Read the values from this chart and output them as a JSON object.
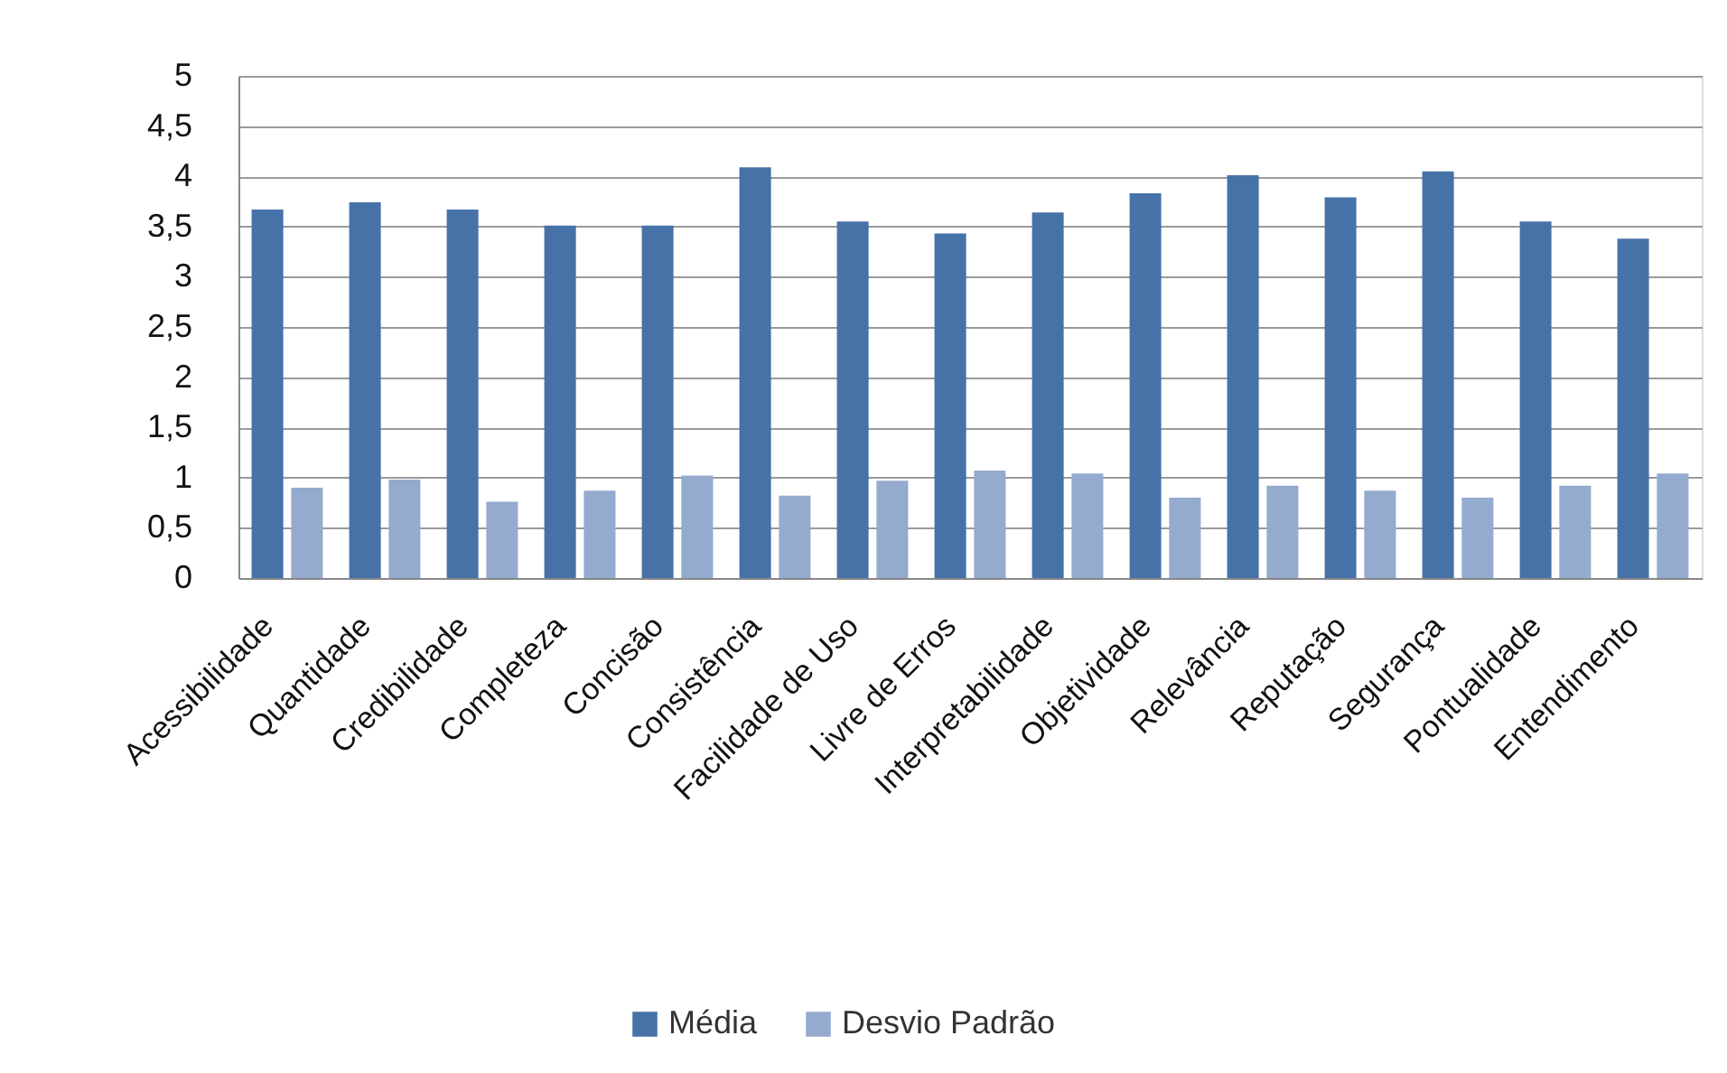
{
  "chart_data": {
    "type": "bar",
    "categories": [
      "Acessibilidade",
      "Quantidade",
      "Credibilidade",
      "Completeza",
      "Concisão",
      "Consistência",
      "Facilidade de Uso",
      "Livre de Erros",
      "Interpretabilidade",
      "Objetividade",
      "Relevância",
      "Reputação",
      "Segurança",
      "Pontualidade",
      "Entendimento"
    ],
    "series": [
      {
        "name": "Média",
        "color": "#4672a8",
        "values": [
          3.67,
          3.74,
          3.67,
          3.51,
          3.51,
          4.09,
          3.55,
          3.43,
          3.64,
          3.83,
          4.01,
          3.79,
          4.05,
          3.55,
          3.38
        ]
      },
      {
        "name": "Desvio Padrão",
        "color": "#94aacf",
        "values": [
          0.9,
          0.98,
          0.76,
          0.87,
          1.02,
          0.82,
          0.97,
          1.07,
          1.04,
          0.8,
          0.92,
          0.87,
          0.8,
          0.92,
          1.04
        ]
      }
    ],
    "ylim": [
      0,
      5
    ],
    "yticks": [
      0,
      {
        "value": 0.5,
        "label": "0,5"
      },
      1,
      {
        "value": 1.5,
        "label": "1,5"
      },
      2,
      {
        "value": 2.5,
        "label": "2,5"
      },
      3,
      {
        "value": 3.5,
        "label": "3,5"
      },
      4,
      {
        "value": 4.5,
        "label": "4,5"
      },
      5
    ],
    "grid": "y",
    "legend": "bottom"
  }
}
